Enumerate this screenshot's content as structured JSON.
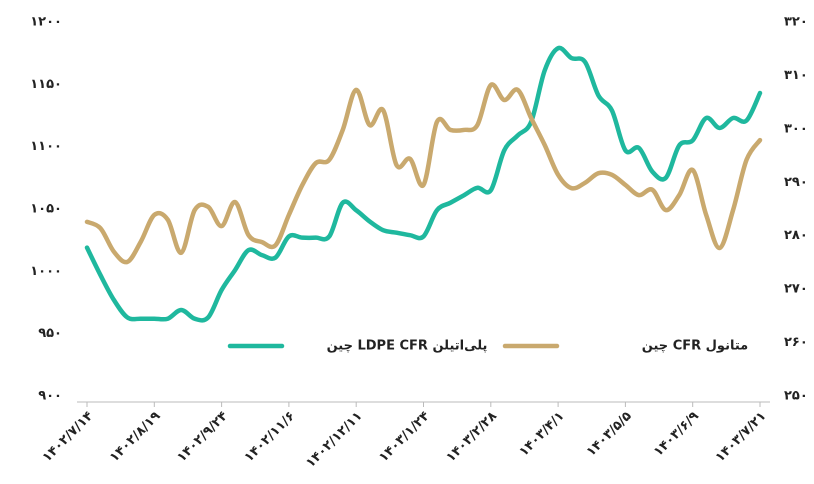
{
  "chart_data": {
    "type": "line",
    "categories": [
      "۱۴۰۲/۷/۱۴",
      null,
      null,
      null,
      null,
      "۱۴۰۲/۸/۱۹",
      null,
      null,
      null,
      null,
      "۱۴۰۲/۹/۲۴",
      null,
      null,
      null,
      null,
      "۱۴۰۲/۱۱/۶",
      null,
      null,
      null,
      null,
      "۱۴۰۲/۱۲/۱۱",
      null,
      null,
      null,
      null,
      "۱۴۰۳/۱/۲۴",
      null,
      null,
      null,
      null,
      "۱۴۰۳/۲/۲۸",
      null,
      null,
      null,
      null,
      "۱۴۰۳/۴/۱",
      null,
      null,
      null,
      null,
      "۱۴۰۳/۵/۵",
      null,
      null,
      null,
      null,
      "۱۴۰۳/۶/۹",
      null,
      null,
      null,
      null,
      "۱۴۰۳/۷/۲۱"
    ],
    "series": [
      {
        "name": "پلی‌اتیلن LDPE CFR چین",
        "color": "#1fb89e",
        "values": [
          1019,
          997,
          977,
          963,
          962,
          962,
          962,
          969,
          962,
          963,
          985,
          1001,
          1017,
          1013,
          1011,
          1028,
          1027,
          1027,
          1028,
          1055,
          1049,
          1040,
          1033,
          1031,
          1029,
          1028,
          1049,
          1055,
          1061,
          1067,
          1065,
          1097,
          1109,
          1120,
          1161,
          1179,
          1171,
          1168,
          1141,
          1129,
          1097,
          1099,
          1080,
          1075,
          1101,
          1105,
          1123,
          1115,
          1123,
          1121,
          1143
        ]
      },
      {
        "name": "متانول CFR چین",
        "color": "#c9a96e",
        "axis": "y2",
        "values": [
          282.6,
          281.4,
          277,
          275.1,
          278.9,
          283.9,
          283,
          276.8,
          284.8,
          285.4,
          281.8,
          286.3,
          280.1,
          278.8,
          278.2,
          283.9,
          289.5,
          293.6,
          294.2,
          299.8,
          307.3,
          300.7,
          303.5,
          293.2,
          294.4,
          289.5,
          301.3,
          299.8,
          299.8,
          300.7,
          308.2,
          305.4,
          307.3,
          302,
          297,
          291.4,
          288.9,
          289.9,
          291.7,
          291.4,
          289.5,
          287.6,
          288.6,
          284.8,
          287.6,
          292.3,
          283.9,
          277.7,
          284.8,
          294.2,
          297.9
        ]
      }
    ],
    "ylim": [
      900,
      1200
    ],
    "yticks": [
      {
        "value": 900,
        "label": "۹۰۰"
      },
      {
        "value": 950,
        "label": "۹۵۰"
      },
      {
        "value": 1000,
        "label": "۱۰۰۰"
      },
      {
        "value": 1050,
        "label": "۱۰۵۰"
      },
      {
        "value": 1100,
        "label": "۱۱۰۰"
      },
      {
        "value": 1150,
        "label": "۱۱۵۰"
      },
      {
        "value": 1200,
        "label": "۱۲۰۰"
      }
    ],
    "y2lim": [
      250,
      320
    ],
    "y2ticks": [
      {
        "value": 250,
        "label": "۲۵۰"
      },
      {
        "value": 260,
        "label": "۲۶۰"
      },
      {
        "value": 270,
        "label": "۲۷۰"
      },
      {
        "value": 280,
        "label": "۲۸۰"
      },
      {
        "value": 290,
        "label": "۲۹۰"
      },
      {
        "value": 300,
        "label": "۳۰۰"
      },
      {
        "value": 310,
        "label": "۳۱۰"
      },
      {
        "value": 320,
        "label": "۳۲۰"
      }
    ],
    "grid": false
  }
}
